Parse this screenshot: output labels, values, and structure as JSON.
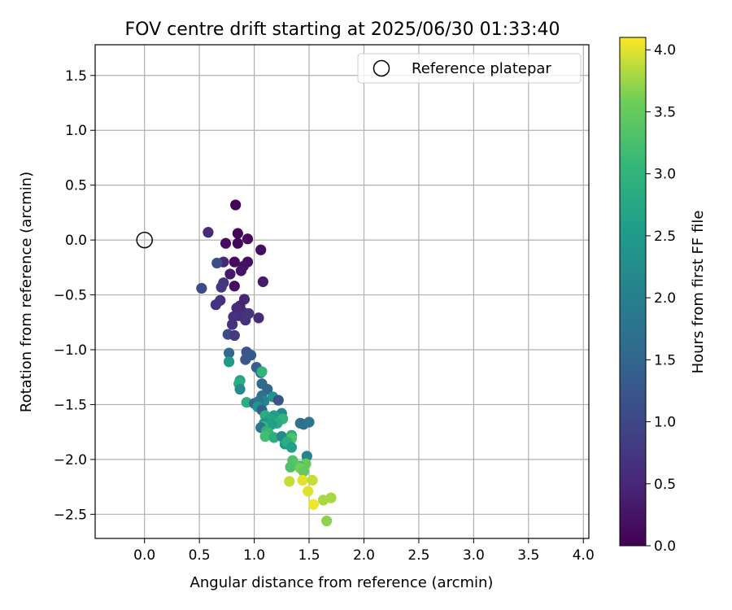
{
  "chart_data": {
    "type": "scatter",
    "title": "FOV centre drift starting at 2025/06/30 01:33:40",
    "xlabel": "Angular distance from reference (arcmin)",
    "ylabel": "Rotation from reference (arcmin)",
    "xlim": [
      -0.45,
      4.05
    ],
    "ylim": [
      -2.72,
      1.78
    ],
    "xticks": [
      "0.0",
      "0.5",
      "1.0",
      "1.5",
      "2.0",
      "2.5",
      "3.0",
      "3.5",
      "4.0"
    ],
    "yticks": [
      "1.5",
      "1.0",
      "0.5",
      "0.0",
      "−0.5",
      "−1.0",
      "−1.5",
      "−2.0",
      "−2.5"
    ],
    "grid": true,
    "legend": {
      "placement": "upper-right",
      "label": "Reference platepar"
    },
    "reference_point": {
      "x": 0.0,
      "y": 0.0
    },
    "colorbar": {
      "label": "Hours from first FF file",
      "colormap": "viridis",
      "range": [
        0.0,
        4.1
      ],
      "ticks": [
        "0.0",
        "0.5",
        "1.0",
        "1.5",
        "2.0",
        "2.5",
        "3.0",
        "3.5",
        "4.0"
      ]
    },
    "points": [
      {
        "x": 0.83,
        "y": 0.32,
        "t": 0.05
      },
      {
        "x": 0.85,
        "y": 0.06,
        "t": 0.08
      },
      {
        "x": 0.94,
        "y": 0.01,
        "t": 0.12
      },
      {
        "x": 0.85,
        "y": -0.03,
        "t": 0.1
      },
      {
        "x": 0.74,
        "y": -0.03,
        "t": 0.15
      },
      {
        "x": 1.06,
        "y": -0.09,
        "t": 0.15
      },
      {
        "x": 0.94,
        "y": -0.2,
        "t": 0.18
      },
      {
        "x": 0.82,
        "y": -0.2,
        "t": 0.12
      },
      {
        "x": 0.9,
        "y": -0.24,
        "t": 0.2
      },
      {
        "x": 0.88,
        "y": -0.28,
        "t": 0.25
      },
      {
        "x": 0.78,
        "y": -0.31,
        "t": 0.3
      },
      {
        "x": 0.82,
        "y": -0.42,
        "t": 0.15
      },
      {
        "x": 1.08,
        "y": -0.38,
        "t": 0.35
      },
      {
        "x": 0.58,
        "y": 0.07,
        "t": 0.55
      },
      {
        "x": 0.72,
        "y": -0.2,
        "t": 0.5
      },
      {
        "x": 0.72,
        "y": -0.39,
        "t": 0.7
      },
      {
        "x": 0.7,
        "y": -0.43,
        "t": 0.75
      },
      {
        "x": 0.69,
        "y": -0.55,
        "t": 0.65
      },
      {
        "x": 0.65,
        "y": -0.59,
        "t": 0.65
      },
      {
        "x": 0.91,
        "y": -0.54,
        "t": 0.5
      },
      {
        "x": 0.87,
        "y": -0.6,
        "t": 0.45
      },
      {
        "x": 0.84,
        "y": -0.62,
        "t": 0.55
      },
      {
        "x": 0.9,
        "y": -0.66,
        "t": 0.55
      },
      {
        "x": 0.95,
        "y": -0.67,
        "t": 0.7
      },
      {
        "x": 0.86,
        "y": -0.69,
        "t": 0.6
      },
      {
        "x": 0.81,
        "y": -0.7,
        "t": 0.65
      },
      {
        "x": 1.04,
        "y": -0.71,
        "t": 0.55
      },
      {
        "x": 0.92,
        "y": -0.73,
        "t": 0.7
      },
      {
        "x": 0.8,
        "y": -0.77,
        "t": 0.65
      },
      {
        "x": 0.66,
        "y": -0.21,
        "t": 1.1
      },
      {
        "x": 0.52,
        "y": -0.44,
        "t": 1.05
      },
      {
        "x": 0.76,
        "y": -0.86,
        "t": 1.05
      },
      {
        "x": 0.82,
        "y": -0.87,
        "t": 0.8
      },
      {
        "x": 0.93,
        "y": -1.02,
        "t": 1.2
      },
      {
        "x": 0.97,
        "y": -1.05,
        "t": 1.3
      },
      {
        "x": 0.92,
        "y": -1.09,
        "t": 1.25
      },
      {
        "x": 0.77,
        "y": -1.03,
        "t": 1.6
      },
      {
        "x": 0.77,
        "y": -1.11,
        "t": 2.5
      },
      {
        "x": 1.02,
        "y": -1.16,
        "t": 1.4
      },
      {
        "x": 1.06,
        "y": -1.21,
        "t": 1.5
      },
      {
        "x": 1.07,
        "y": -1.2,
        "t": 3.0
      },
      {
        "x": 1.07,
        "y": -1.31,
        "t": 1.6
      },
      {
        "x": 1.12,
        "y": -1.36,
        "t": 1.5
      },
      {
        "x": 0.87,
        "y": -1.28,
        "t": 2.7
      },
      {
        "x": 0.86,
        "y": -1.31,
        "t": 2.9
      },
      {
        "x": 0.87,
        "y": -1.36,
        "t": 2.2
      },
      {
        "x": 1.07,
        "y": -1.42,
        "t": 1.7
      },
      {
        "x": 1.17,
        "y": -1.43,
        "t": 2.4
      },
      {
        "x": 1.22,
        "y": -1.46,
        "t": 1.2
      },
      {
        "x": 1.09,
        "y": -1.47,
        "t": 2.1
      },
      {
        "x": 0.93,
        "y": -1.48,
        "t": 2.9
      },
      {
        "x": 1.0,
        "y": -1.49,
        "t": 1.6
      },
      {
        "x": 1.04,
        "y": -1.47,
        "t": 1.8
      },
      {
        "x": 1.03,
        "y": -1.52,
        "t": 2.4
      },
      {
        "x": 1.07,
        "y": -1.55,
        "t": 1.4
      },
      {
        "x": 1.25,
        "y": -1.58,
        "t": 2.2
      },
      {
        "x": 1.18,
        "y": -1.6,
        "t": 2.6
      },
      {
        "x": 1.1,
        "y": -1.6,
        "t": 2.9
      },
      {
        "x": 1.14,
        "y": -1.63,
        "t": 2.7
      },
      {
        "x": 1.26,
        "y": -1.63,
        "t": 3.0
      },
      {
        "x": 1.21,
        "y": -1.67,
        "t": 2.8
      },
      {
        "x": 1.09,
        "y": -1.67,
        "t": 2.4
      },
      {
        "x": 1.16,
        "y": -1.68,
        "t": 2.6
      },
      {
        "x": 1.08,
        "y": -1.7,
        "t": 3.1
      },
      {
        "x": 1.06,
        "y": -1.71,
        "t": 1.8
      },
      {
        "x": 1.11,
        "y": -1.74,
        "t": 2.9
      },
      {
        "x": 1.13,
        "y": -1.76,
        "t": 3.1
      },
      {
        "x": 1.1,
        "y": -1.79,
        "t": 3.2
      },
      {
        "x": 1.18,
        "y": -1.8,
        "t": 2.9
      },
      {
        "x": 1.25,
        "y": -1.79,
        "t": 2.2
      },
      {
        "x": 1.34,
        "y": -1.78,
        "t": 2.9
      },
      {
        "x": 1.34,
        "y": -1.81,
        "t": 3.3
      },
      {
        "x": 1.28,
        "y": -1.86,
        "t": 2.5
      },
      {
        "x": 1.3,
        "y": -1.84,
        "t": 2.9
      },
      {
        "x": 1.34,
        "y": -1.89,
        "t": 2.6
      },
      {
        "x": 1.42,
        "y": -1.67,
        "t": 1.7
      },
      {
        "x": 1.45,
        "y": -1.68,
        "t": 1.7
      },
      {
        "x": 1.5,
        "y": -1.66,
        "t": 1.8
      },
      {
        "x": 1.48,
        "y": -1.97,
        "t": 2.1
      },
      {
        "x": 1.35,
        "y": -2.01,
        "t": 3.3
      },
      {
        "x": 1.47,
        "y": -2.04,
        "t": 3.5
      },
      {
        "x": 1.41,
        "y": -2.06,
        "t": 3.1
      },
      {
        "x": 1.37,
        "y": -2.05,
        "t": 3.4
      },
      {
        "x": 1.33,
        "y": -2.07,
        "t": 3.3
      },
      {
        "x": 1.42,
        "y": -2.08,
        "t": 3.6
      },
      {
        "x": 1.45,
        "y": -2.11,
        "t": 3.5
      },
      {
        "x": 1.32,
        "y": -2.2,
        "t": 3.9
      },
      {
        "x": 1.44,
        "y": -2.19,
        "t": 4.0
      },
      {
        "x": 1.53,
        "y": -2.19,
        "t": 3.9
      },
      {
        "x": 1.49,
        "y": -2.29,
        "t": 4.0
      },
      {
        "x": 1.63,
        "y": -2.37,
        "t": 3.8
      },
      {
        "x": 1.7,
        "y": -2.35,
        "t": 3.8
      },
      {
        "x": 1.54,
        "y": -2.41,
        "t": 4.05
      },
      {
        "x": 1.66,
        "y": -2.56,
        "t": 3.7
      }
    ]
  }
}
